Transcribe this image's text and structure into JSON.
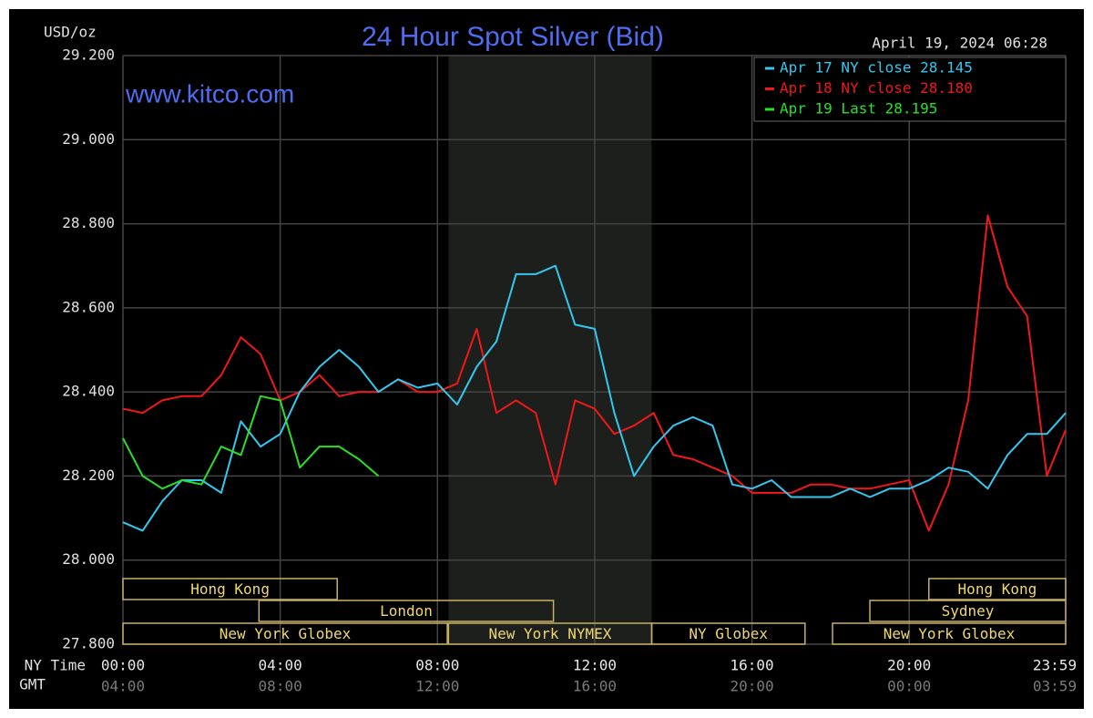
{
  "chart_data": {
    "type": "line",
    "title": "24 Hour Spot Silver (Bid)",
    "ylabel": "USD/oz",
    "timestamp": "April 19, 2024 06:28",
    "watermark": "www.kitco.com",
    "xlabel": "NY Time",
    "x2label": "GMT",
    "x": [
      0,
      0.5,
      1,
      1.5,
      2,
      2.5,
      3,
      3.5,
      4,
      4.5,
      5,
      5.5,
      6,
      6.5,
      7,
      7.5,
      8,
      8.5,
      9,
      9.5,
      10,
      10.5,
      11,
      11.5,
      12,
      12.5,
      13,
      13.5,
      14,
      14.5,
      15,
      15.5,
      16,
      16.5,
      17,
      17.5,
      18,
      18.5,
      19,
      19.5,
      20,
      20.5,
      21,
      21.5,
      22,
      22.5,
      23,
      23.5,
      23.98
    ],
    "series": [
      {
        "name": "Apr 17 NY close 28.145",
        "color": "#33c8f0",
        "values": [
          28.09,
          28.07,
          28.14,
          28.19,
          28.19,
          28.16,
          28.33,
          28.27,
          28.3,
          28.4,
          28.46,
          28.5,
          28.46,
          28.4,
          28.43,
          28.41,
          28.42,
          28.37,
          28.46,
          28.52,
          28.68,
          28.68,
          28.7,
          28.56,
          28.55,
          28.35,
          28.2,
          28.27,
          28.32,
          28.34,
          28.32,
          28.18,
          28.17,
          28.19,
          28.15,
          28.15,
          28.15,
          28.17,
          28.15,
          28.17,
          28.17,
          28.19,
          28.22,
          28.21,
          28.17,
          28.25,
          28.3,
          28.3,
          28.35
        ]
      },
      {
        "name": "Apr 18 NY close 28.180",
        "color": "#f01818",
        "values": [
          28.36,
          28.35,
          28.38,
          28.39,
          28.39,
          28.44,
          28.53,
          28.49,
          28.38,
          28.4,
          28.44,
          28.39,
          28.4,
          28.4,
          28.43,
          28.4,
          28.4,
          28.42,
          28.55,
          28.35,
          28.38,
          28.35,
          28.18,
          28.38,
          28.36,
          28.3,
          28.32,
          28.35,
          28.25,
          28.24,
          28.22,
          28.2,
          28.16,
          28.16,
          28.16,
          28.18,
          28.18,
          28.17,
          28.17,
          28.18,
          28.19,
          28.07,
          28.18,
          28.38,
          28.82,
          28.65,
          28.58,
          28.2,
          28.31
        ]
      },
      {
        "name": "Apr 19 Last 28.195",
        "color": "#28e028",
        "values": [
          28.29,
          28.2,
          28.17,
          28.19,
          28.18,
          28.27,
          28.25,
          28.39,
          28.38,
          28.22,
          28.27,
          28.27,
          28.24,
          28.2,
          null,
          null,
          null,
          null,
          null,
          null,
          null,
          null,
          null,
          null,
          null,
          null,
          null,
          null,
          null,
          null,
          null,
          null,
          null,
          null,
          null,
          null,
          null,
          null,
          null,
          null,
          null,
          null,
          null,
          null,
          null,
          null,
          null,
          null,
          null
        ]
      }
    ],
    "xlim": [
      0,
      23.98
    ],
    "xticks": [
      {
        "value": 0,
        "label": "00:00"
      },
      {
        "value": 4,
        "label": "04:00"
      },
      {
        "value": 8,
        "label": "08:00"
      },
      {
        "value": 12,
        "label": "12:00"
      },
      {
        "value": 16,
        "label": "16:00"
      },
      {
        "value": 20,
        "label": "20:00"
      },
      {
        "value": 23.98,
        "label": "23:59"
      }
    ],
    "x2ticks": [
      {
        "value": 0,
        "label": "04:00"
      },
      {
        "value": 4,
        "label": "08:00"
      },
      {
        "value": 8,
        "label": "12:00"
      },
      {
        "value": 12,
        "label": "16:00"
      },
      {
        "value": 16,
        "label": "20:00"
      },
      {
        "value": 20,
        "label": "00:00"
      },
      {
        "value": 23.98,
        "label": "03:59"
      }
    ],
    "ylim": [
      27.8,
      29.2
    ],
    "yticks": [
      {
        "value": 27.8,
        "label": "27.800"
      },
      {
        "value": 28.0,
        "label": "28.000"
      },
      {
        "value": 28.2,
        "label": "28.200"
      },
      {
        "value": 28.4,
        "label": "28.400"
      },
      {
        "value": 28.6,
        "label": "28.600"
      },
      {
        "value": 28.8,
        "label": "28.800"
      },
      {
        "value": 29.0,
        "label": "29.000"
      },
      {
        "value": 29.2,
        "label": "29.200"
      }
    ],
    "grid": true,
    "legend": "top-right",
    "sessions": [
      {
        "label": "Hong Kong",
        "start": 0,
        "end": 5.45,
        "row": 0
      },
      {
        "label": "Hong Kong",
        "start": 20.5,
        "end": 23.98,
        "row": 0
      },
      {
        "label": "London",
        "start": 3.46,
        "end": 10.95,
        "row": 1
      },
      {
        "label": "Sydney",
        "start": 19,
        "end": 23.98,
        "row": 1
      },
      {
        "label": "New York Globex",
        "start": 0,
        "end": 8.25,
        "row": 2
      },
      {
        "label": "New York NYMEX",
        "start": 8.28,
        "end": 13.45,
        "row": 2,
        "shaded": true
      },
      {
        "label": "NY Globex",
        "start": 13.45,
        "end": 17.35,
        "row": 2
      },
      {
        "label": "New York Globex",
        "start": 18.05,
        "end": 23.98,
        "row": 2
      }
    ]
  }
}
